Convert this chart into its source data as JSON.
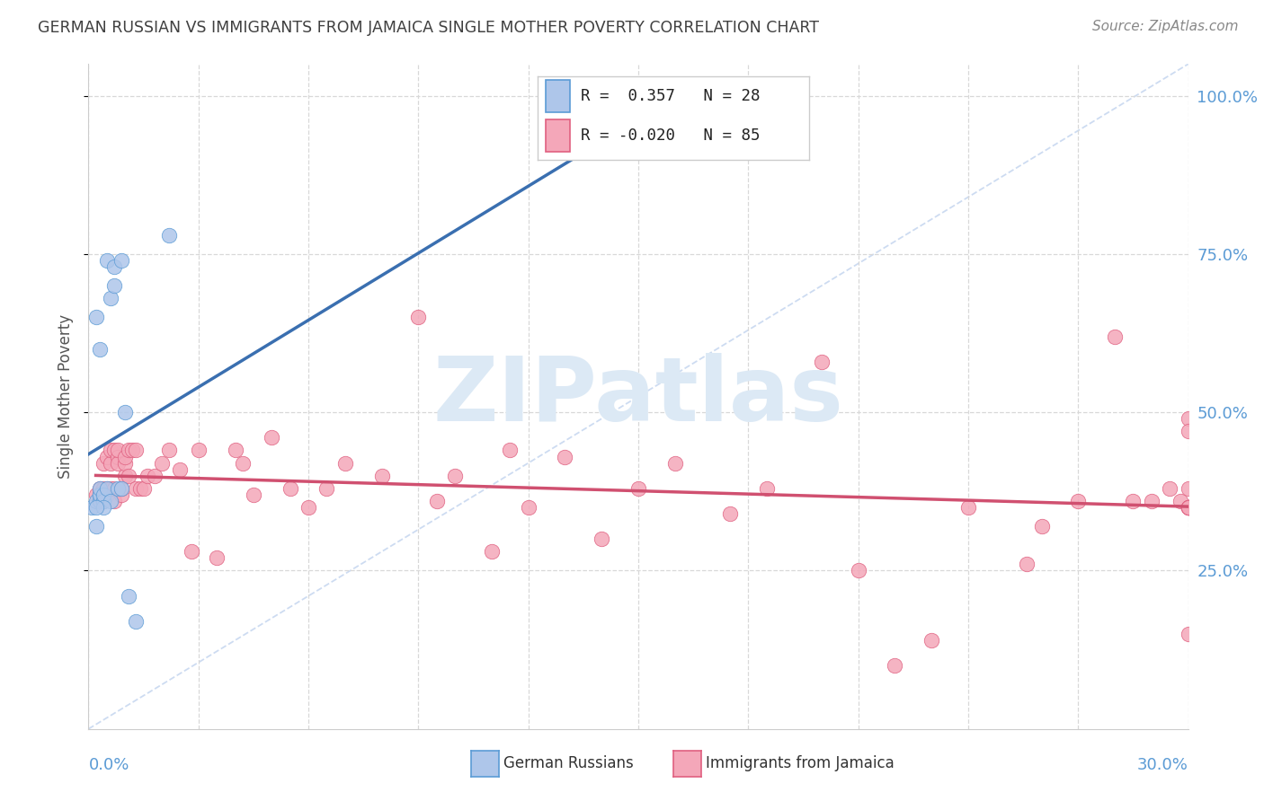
{
  "title": "GERMAN RUSSIAN VS IMMIGRANTS FROM JAMAICA SINGLE MOTHER POVERTY CORRELATION CHART",
  "source": "Source: ZipAtlas.com",
  "ylabel": "Single Mother Poverty",
  "r_blue": 0.357,
  "n_blue": 28,
  "r_pink": -0.02,
  "n_pink": 85,
  "blue_fill": "#aec6ea",
  "blue_edge": "#5b9bd5",
  "pink_fill": "#f4a7b9",
  "pink_edge": "#e06080",
  "blue_line": "#3a6fb0",
  "pink_line": "#d05070",
  "diag_color": "#c8d8f0",
  "grid_color": "#d8d8d8",
  "axis_blue": "#5b9bd5",
  "title_color": "#404040",
  "source_color": "#888888",
  "bg_color": "#ffffff",
  "watermark_text": "ZIPatlas",
  "watermark_color": "#dce9f5",
  "legend_box_color": "#ffffff",
  "legend_border_color": "#cccccc",
  "xlim": [
    0.0,
    0.3
  ],
  "ylim": [
    0.0,
    1.05
  ],
  "xtick_vals": [
    0.0,
    0.03,
    0.06,
    0.09,
    0.12,
    0.15,
    0.18,
    0.21,
    0.24,
    0.27,
    0.3
  ],
  "ytick_right_vals": [
    0.25,
    0.5,
    0.75,
    1.0
  ],
  "ytick_right_labels": [
    "25.0%",
    "50.0%",
    "75.0%",
    "100.0%"
  ],
  "blue_x": [
    0.001,
    0.002,
    0.002,
    0.002,
    0.003,
    0.003,
    0.003,
    0.003,
    0.004,
    0.004,
    0.004,
    0.005,
    0.005,
    0.006,
    0.006,
    0.007,
    0.007,
    0.008,
    0.009,
    0.009,
    0.01,
    0.011,
    0.013,
    0.003,
    0.004,
    0.002,
    0.022,
    0.145
  ],
  "blue_y": [
    0.35,
    0.32,
    0.65,
    0.36,
    0.37,
    0.36,
    0.37,
    0.38,
    0.36,
    0.36,
    0.37,
    0.38,
    0.74,
    0.36,
    0.68,
    0.7,
    0.73,
    0.38,
    0.38,
    0.74,
    0.5,
    0.21,
    0.17,
    0.6,
    0.35,
    0.35,
    0.78,
    0.92
  ],
  "pink_x": [
    0.002,
    0.003,
    0.003,
    0.003,
    0.004,
    0.004,
    0.004,
    0.004,
    0.005,
    0.005,
    0.005,
    0.006,
    0.006,
    0.006,
    0.007,
    0.007,
    0.007,
    0.008,
    0.008,
    0.008,
    0.009,
    0.009,
    0.01,
    0.01,
    0.01,
    0.011,
    0.011,
    0.012,
    0.013,
    0.013,
    0.014,
    0.015,
    0.016,
    0.018,
    0.02,
    0.022,
    0.025,
    0.028,
    0.03,
    0.035,
    0.04,
    0.042,
    0.045,
    0.05,
    0.055,
    0.06,
    0.065,
    0.07,
    0.08,
    0.09,
    0.095,
    0.1,
    0.11,
    0.115,
    0.12,
    0.13,
    0.14,
    0.15,
    0.16,
    0.175,
    0.185,
    0.2,
    0.21,
    0.22,
    0.23,
    0.24,
    0.256,
    0.26,
    0.27,
    0.28,
    0.285,
    0.29,
    0.295,
    0.298,
    0.3,
    0.3,
    0.3,
    0.3,
    0.3,
    0.3,
    0.3,
    0.3,
    0.3,
    0.3,
    0.3
  ],
  "pink_y": [
    0.37,
    0.36,
    0.37,
    0.38,
    0.36,
    0.37,
    0.38,
    0.42,
    0.37,
    0.38,
    0.43,
    0.38,
    0.42,
    0.44,
    0.36,
    0.38,
    0.44,
    0.43,
    0.42,
    0.44,
    0.37,
    0.38,
    0.4,
    0.42,
    0.43,
    0.4,
    0.44,
    0.44,
    0.38,
    0.44,
    0.38,
    0.38,
    0.4,
    0.4,
    0.42,
    0.44,
    0.41,
    0.28,
    0.44,
    0.27,
    0.44,
    0.42,
    0.37,
    0.46,
    0.38,
    0.35,
    0.38,
    0.42,
    0.4,
    0.65,
    0.36,
    0.4,
    0.28,
    0.44,
    0.35,
    0.43,
    0.3,
    0.38,
    0.42,
    0.34,
    0.38,
    0.58,
    0.25,
    0.1,
    0.14,
    0.35,
    0.26,
    0.32,
    0.36,
    0.62,
    0.36,
    0.36,
    0.38,
    0.36,
    0.35,
    0.35,
    0.38,
    0.35,
    0.35,
    0.35,
    0.35,
    0.15,
    0.35,
    0.49,
    0.47
  ]
}
